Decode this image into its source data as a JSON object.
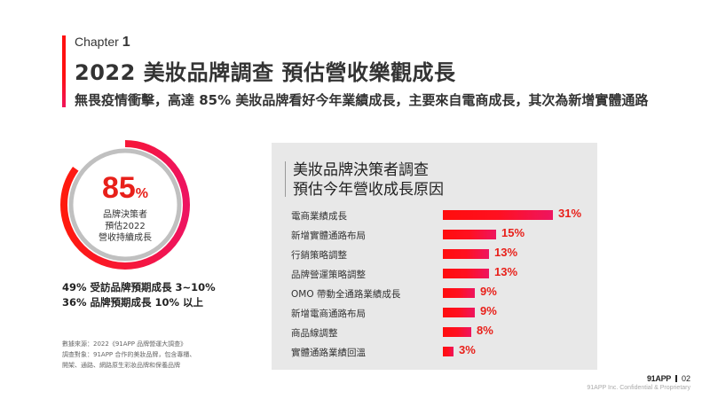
{
  "header": {
    "chapter_label": "Chapter",
    "chapter_number": "1",
    "title": "2022 美妝品牌調查 預估營收樂觀成長",
    "subtitle": "無畏疫情衝擊，高達 85% 美妝品牌看好今年業績成長，主要來自電商成長，其次為新增實體通路"
  },
  "donut": {
    "value": "85",
    "unit": "%",
    "percent": 85,
    "caption_lines": [
      "品牌決策者",
      "預估2022",
      "營收持續成長"
    ],
    "colors": {
      "arc_start": "#ff1a0d",
      "arc_end": "#ee1460",
      "track": "#c0c0c0"
    }
  },
  "stats": [
    "49% 受訪品牌預期成長 3~10%",
    "36% 品牌預期成長 10% 以上"
  ],
  "source": [
    "數據來源：2022《91APP 品牌營運大調查》",
    "調查對象：91APP 合作的美妝品牌，包含專櫃、",
    "開架、通路、網路原生彩妝品牌和保養品牌"
  ],
  "chart_panel": {
    "title_lines": [
      "美妝品牌決策者調查",
      "預估今年營收成長原因"
    ]
  },
  "chart_data": {
    "type": "bar",
    "orientation": "horizontal",
    "title": "美妝品牌決策者調查 預估今年營收成長原因",
    "categories": [
      "電商業績成長",
      "新增實體通路布局",
      "行銷策略調整",
      "品牌營運策略調整",
      "OMO 帶動全通路業績成長",
      "新增電商通路布局",
      "商品線調整",
      "實體通路業績回溫"
    ],
    "values": [
      31,
      15,
      13,
      13,
      9,
      9,
      8,
      3
    ],
    "value_labels": [
      "31%",
      "15%",
      "13%",
      "13%",
      "9%",
      "9%",
      "8%",
      "3%"
    ],
    "unit": "%",
    "xlabel": "",
    "ylabel": "",
    "grid": false,
    "legend": "none",
    "colors": {
      "bar_start": "#ff0d0d",
      "bar_end": "#ee1560",
      "label": "#e8201a"
    }
  },
  "footer": {
    "brand": "91APP",
    "page": "02",
    "note": "91APP Inc. Confidential & Proprietary"
  }
}
